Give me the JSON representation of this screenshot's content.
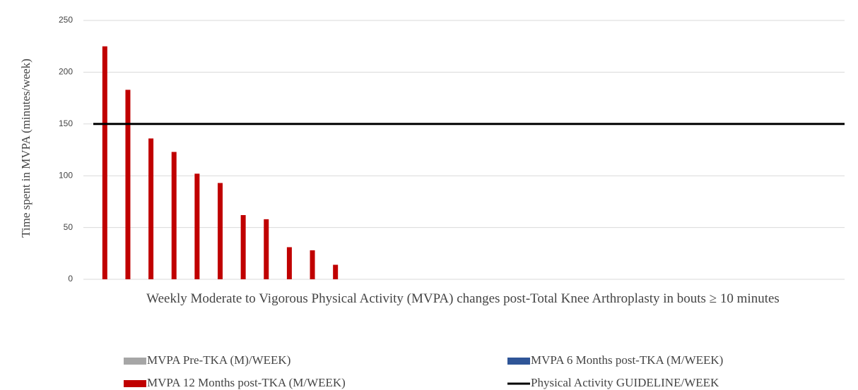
{
  "chart_data": {
    "type": "bar",
    "y_label": "Time spent in MVPA (minutes/week)",
    "x_label": "Weekly Moderate to Vigorous Physical Activity (MVPA) changes post-Total Knee Arthroplasty in bouts ≥ 10 minutes",
    "categories": [
      null,
      null,
      null,
      null,
      null,
      null,
      null,
      null,
      null,
      null,
      null,
      null,
      null,
      null,
      null,
      null,
      null,
      null,
      null,
      null,
      null,
      null,
      null,
      null,
      null,
      null,
      null,
      null,
      null,
      null,
      null,
      null,
      null
    ],
    "series": [
      {
        "name": "MVPA Pre-TKA (M)/WEEK)",
        "color": "#a6a6a6",
        "values": [
          0,
          0,
          0,
          0,
          0,
          0,
          0,
          0,
          0,
          0,
          0,
          0,
          0,
          0,
          0,
          0,
          0,
          0,
          0,
          0,
          0,
          0,
          0,
          0,
          0,
          0,
          0,
          0,
          0,
          0,
          0,
          0,
          0
        ]
      },
      {
        "name": "MVPA 6 Months post-TKA (M/WEEK)",
        "color": "#2f5597",
        "values": [
          0,
          0,
          0,
          0,
          0,
          0,
          0,
          0,
          0,
          0,
          0,
          0,
          0,
          0,
          0,
          0,
          0,
          0,
          0,
          0,
          0,
          0,
          0,
          0,
          0,
          0,
          0,
          0,
          0,
          0,
          0,
          0,
          0
        ]
      },
      {
        "name": "MVPA 12 Months post-TKA (M/WEEK)",
        "color": "#c00000",
        "values": [
          225,
          183,
          136,
          123,
          102,
          93,
          62,
          58,
          31,
          28,
          14,
          0,
          0,
          0,
          0,
          0,
          0,
          0,
          0,
          0,
          0,
          0,
          0,
          0,
          0,
          0,
          0,
          0,
          0,
          0,
          0,
          0,
          0
        ]
      }
    ],
    "guideline": {
      "name": "Physical Activity GUIDELINE/WEEK",
      "value": 150,
      "color": "#000000"
    },
    "ylim": [
      0,
      250
    ],
    "yticks": [
      0,
      50,
      100,
      150,
      200,
      250
    ],
    "grid": true,
    "legend": "bottom"
  }
}
